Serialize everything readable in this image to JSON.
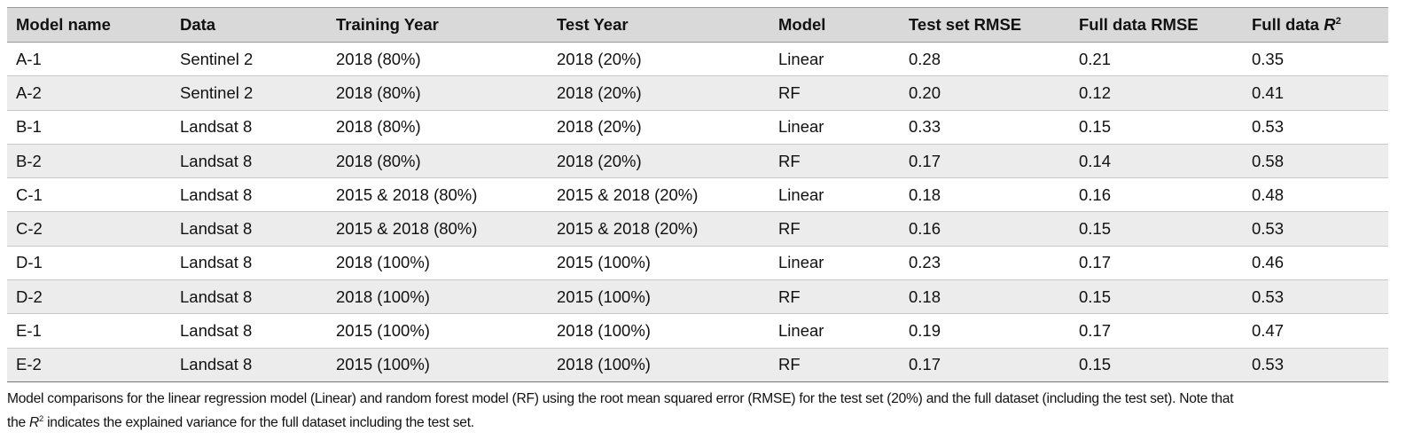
{
  "table": {
    "header": [
      "Model name",
      "Data",
      "Training Year",
      "Test Year",
      "Model",
      "Test set RMSE",
      "Full data RMSE",
      {
        "text": "Full data ",
        "variable": "R",
        "superscript": "2"
      }
    ],
    "rows": [
      [
        "A-1",
        "Sentinel 2",
        "2018 (80%)",
        "2018 (20%)",
        "Linear",
        "0.28",
        "0.21",
        "0.35"
      ],
      [
        "A-2",
        "Sentinel 2",
        "2018 (80%)",
        "2018 (20%)",
        "RF",
        "0.20",
        "0.12",
        "0.41"
      ],
      [
        "B-1",
        "Landsat 8",
        "2018 (80%)",
        "2018 (20%)",
        "Linear",
        "0.33",
        "0.15",
        "0.53"
      ],
      [
        "B-2",
        "Landsat 8",
        "2018 (80%)",
        "2018 (20%)",
        "RF",
        "0.17",
        "0.14",
        "0.58"
      ],
      [
        "C-1",
        "Landsat 8",
        "2015 & 2018 (80%)",
        "2015 & 2018 (20%)",
        "Linear",
        "0.18",
        "0.16",
        "0.48"
      ],
      [
        "C-2",
        "Landsat 8",
        "2015 & 2018 (80%)",
        "2015 & 2018 (20%)",
        "RF",
        "0.16",
        "0.15",
        "0.53"
      ],
      [
        "D-1",
        "Landsat 8",
        "2018 (100%)",
        "2015 (100%)",
        "Linear",
        "0.23",
        "0.17",
        "0.46"
      ],
      [
        "D-2",
        "Landsat 8",
        "2018 (100%)",
        "2015 (100%)",
        "RF",
        "0.18",
        "0.15",
        "0.53"
      ],
      [
        "E-1",
        "Landsat 8",
        "2015 (100%)",
        "2018 (100%)",
        "Linear",
        "0.19",
        "0.17",
        "0.47"
      ],
      [
        "E-2",
        "Landsat 8",
        "2015 (100%)",
        "2018 (100%)",
        "RF",
        "0.17",
        "0.15",
        "0.53"
      ]
    ]
  },
  "caption": {
    "line_1": "Model comparisons for the linear regression model (Linear) and random forest model (RF) using the root mean squared error (RMSE) for the test set (20%) and the full dataset (including the test set). Note that",
    "line_2_start": "the ",
    "variable": "R",
    "superscript": "2",
    "line_2_end": " indicates the explained variance for the full dataset including the test set."
  }
}
